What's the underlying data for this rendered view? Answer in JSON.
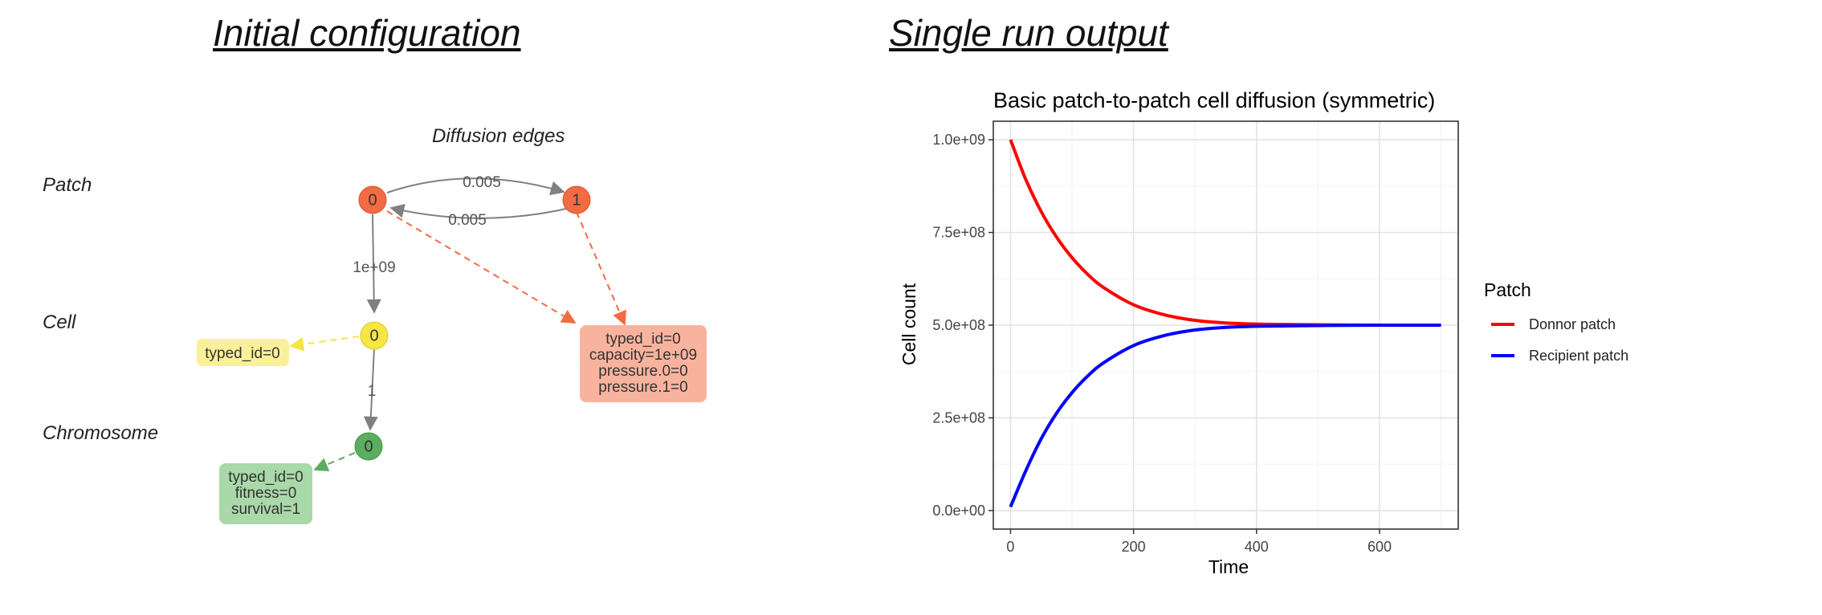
{
  "titles": {
    "left": "Initial configuration",
    "right": "Single run output"
  },
  "diagram": {
    "subtitle": "Diffusion edges",
    "levels": [
      "Patch",
      "Cell",
      "Chromosome"
    ],
    "nodes": {
      "patch0": "0",
      "patch1": "1",
      "cell0": "0",
      "chrom0": "0"
    },
    "colors": {
      "patch": "#F26B43",
      "cell": "#F5E642",
      "chromosome": "#5BAD5F",
      "patch_box": "#F8B39E",
      "cell_box": "#FAF09A",
      "chrom_box": "#A9D8A9",
      "edge": "#808080"
    },
    "edges": {
      "patch_0_to_1": "0.005",
      "patch_1_to_0": "0.005",
      "patch_to_cell": "1e+09",
      "cell_to_chrom": "1"
    },
    "boxes": {
      "cell": [
        "typed_id=0"
      ],
      "patch": [
        "typed_id=0",
        "capacity=1e+09",
        "pressure.0=0",
        "pressure.1=0"
      ],
      "chromosome": [
        "typed_id=0",
        "fitness=0",
        "survival=1"
      ]
    }
  },
  "chart_data": {
    "type": "line",
    "title": "Basic patch-to-patch cell diffusion (symmetric)",
    "xlabel": "Time",
    "ylabel": "Cell count",
    "xlim": [
      -28,
      728
    ],
    "ylim": [
      -50000000,
      1050000000
    ],
    "x_ticks": [
      0,
      200,
      400,
      600
    ],
    "x_tick_labels": [
      "0",
      "200",
      "400",
      "600"
    ],
    "y_ticks": [
      0,
      250000000,
      500000000,
      750000000,
      1000000000
    ],
    "y_tick_labels": [
      "0.0e+00",
      "2.5e+08",
      "5.0e+08",
      "7.5e+08",
      "1.0e+09"
    ],
    "grid": true,
    "legend": {
      "title": "Patch",
      "position": "right"
    },
    "series": [
      {
        "name": "Donnor patch",
        "color": "#FF0000",
        "x": [
          0,
          25,
          50,
          75,
          100,
          125,
          150,
          200,
          250,
          300,
          350,
          400,
          450,
          500,
          600,
          700
        ],
        "y": [
          1000000000,
          892000000,
          806000000,
          737000000,
          682000000,
          638000000,
          603000000,
          555000000,
          528000000,
          513000000,
          506000000,
          503000000,
          502000000,
          501000000,
          500000000,
          500000000
        ]
      },
      {
        "name": "Recipient patch",
        "color": "#0000FF",
        "x": [
          0,
          25,
          50,
          75,
          100,
          125,
          150,
          200,
          250,
          300,
          350,
          400,
          450,
          500,
          600,
          700
        ],
        "y": [
          10000000,
          108000000,
          194000000,
          263000000,
          318000000,
          362000000,
          397000000,
          445000000,
          472000000,
          487000000,
          494000000,
          497000000,
          498000000,
          499000000,
          500000000,
          500000000
        ]
      }
    ]
  }
}
